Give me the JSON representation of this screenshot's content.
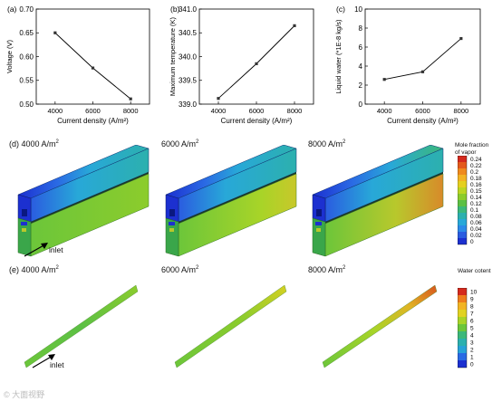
{
  "chart_data": [
    {
      "type": "line",
      "panel": "(a)",
      "x": [
        4000,
        6000,
        8000
      ],
      "y": [
        0.65,
        0.576,
        0.511
      ],
      "xlabel": "Current density (A/m²)",
      "ylabel": "Voltage (V)",
      "xlim": [
        3000,
        9000
      ],
      "ylim": [
        0.5,
        0.7
      ],
      "xticks": [
        "4000",
        "6000",
        "8000"
      ],
      "yticks": [
        "0.50",
        "0.55",
        "0.60",
        "0.65",
        "0.70"
      ],
      "grid": false
    },
    {
      "type": "line",
      "panel": "(b)",
      "x": [
        4000,
        6000,
        8000
      ],
      "y": [
        339.12,
        339.85,
        340.65
      ],
      "xlabel": "Current density (A/m²)",
      "ylabel": "Maximum temperature (K)",
      "xlim": [
        3000,
        9000
      ],
      "ylim": [
        339.0,
        341.0
      ],
      "xticks": [
        "4000",
        "6000",
        "8000"
      ],
      "yticks": [
        "339.0",
        "339.5",
        "340.0",
        "340.5",
        "341.0"
      ],
      "grid": false
    },
    {
      "type": "line",
      "panel": "(c)",
      "x": [
        4000,
        6000,
        8000
      ],
      "y": [
        2.6,
        3.4,
        6.9
      ],
      "xlabel": "Current density (A/m²)",
      "ylabel": "Liquid water (*1E-8 kg/s)",
      "xlim": [
        3000,
        9000
      ],
      "ylim": [
        0,
        10
      ],
      "xticks": [
        "4000",
        "6000",
        "8000"
      ],
      "yticks": [
        "0",
        "2",
        "4",
        "6",
        "8",
        "10"
      ],
      "grid": false
    }
  ],
  "row_d": {
    "labels": [
      "(d) 4000 A/m",
      "6000 A/m",
      "8000 A/m"
    ],
    "sup": "2",
    "inlet": "inlet",
    "colorbar": {
      "title": [
        "Mole fraction",
        "of vapor"
      ],
      "ticks": [
        "0.24",
        "0.22",
        "0.2",
        "0.18",
        "0.16",
        "0.15",
        "0.14",
        "0.12",
        "0.1",
        "0.08",
        "0.06",
        "0.04",
        "0.02",
        "0"
      ],
      "colors": [
        "#d42a1e",
        "#e45a1c",
        "#ef8a1e",
        "#f3b324",
        "#e5d020",
        "#bcd624",
        "#8ccc2c",
        "#5cc044",
        "#3cb87a",
        "#2cb0ae",
        "#28a8d8",
        "#2c8ae8",
        "#2a5ce0",
        "#1c30d0"
      ]
    }
  },
  "row_e": {
    "labels": [
      "(e) 4000 A/m",
      "6000 A/m",
      "8000 A/m"
    ],
    "sup": "2",
    "inlet": "inlet",
    "colorbar": {
      "title": [
        "Water cotent"
      ],
      "ticks": [
        "10",
        "9",
        "8",
        "7",
        "6",
        "5",
        "4",
        "3",
        "2",
        "1",
        "0"
      ],
      "colors": [
        "#d42a1e",
        "#ee7c1e",
        "#f2b424",
        "#e1d222",
        "#a8d428",
        "#6cc63a",
        "#3cb87a",
        "#2cb0ae",
        "#28a2d8",
        "#2a6ae4",
        "#1c30d0"
      ]
    }
  },
  "watermark": "© 大面视野"
}
